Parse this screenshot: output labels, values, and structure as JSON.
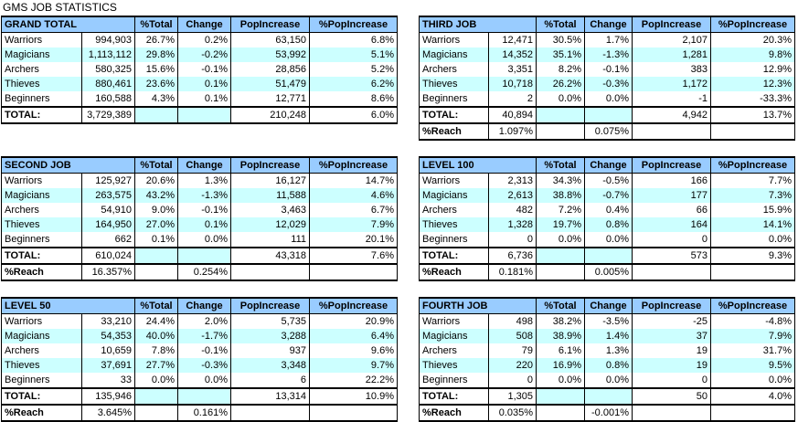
{
  "title": "GMS JOB STATISTICS",
  "headers": [
    "%Total",
    "Change",
    "PopIncrease",
    "%PopIncrease"
  ],
  "tables": {
    "grand_total": {
      "name": "GRAND TOTAL",
      "rows": [
        {
          "label": "Warriors",
          "count": "994,903",
          "pct": "26.7%",
          "change": "0.2%",
          "pop": "63,150",
          "poppct": "6.8%"
        },
        {
          "label": "Magicians",
          "count": "1,113,112",
          "pct": "29.8%",
          "change": "-0.2%",
          "pop": "53,992",
          "poppct": "5.1%"
        },
        {
          "label": "Archers",
          "count": "580,325",
          "pct": "15.6%",
          "change": "-0.1%",
          "pop": "28,856",
          "poppct": "5.2%"
        },
        {
          "label": "Thieves",
          "count": "880,461",
          "pct": "23.6%",
          "change": "0.1%",
          "pop": "51,479",
          "poppct": "6.2%"
        },
        {
          "label": "Beginners",
          "count": "160,588",
          "pct": "4.3%",
          "change": "0.1%",
          "pop": "12,771",
          "poppct": "8.6%"
        }
      ],
      "total": {
        "label": "TOTAL:",
        "count": "3,729,389",
        "pop": "210,248",
        "poppct": "6.0%"
      }
    },
    "third_job": {
      "name": "THIRD JOB",
      "rows": [
        {
          "label": "Warriors",
          "count": "12,471",
          "pct": "30.5%",
          "change": "1.7%",
          "pop": "2,107",
          "poppct": "20.3%"
        },
        {
          "label": "Magicians",
          "count": "14,352",
          "pct": "35.1%",
          "change": "-1.3%",
          "pop": "1,281",
          "poppct": "9.8%"
        },
        {
          "label": "Archers",
          "count": "3,351",
          "pct": "8.2%",
          "change": "-0.1%",
          "pop": "383",
          "poppct": "12.9%"
        },
        {
          "label": "Thieves",
          "count": "10,718",
          "pct": "26.2%",
          "change": "-0.3%",
          "pop": "1,172",
          "poppct": "12.3%"
        },
        {
          "label": "Beginners",
          "count": "2",
          "pct": "0.0%",
          "change": "0.0%",
          "pop": "-1",
          "poppct": "-33.3%"
        }
      ],
      "total": {
        "label": "TOTAL:",
        "count": "40,894",
        "pop": "4,942",
        "poppct": "13.7%"
      },
      "reach": {
        "label": "%Reach",
        "value": "1.097%",
        "change": "0.075%"
      }
    },
    "second_job": {
      "name": "SECOND JOB",
      "rows": [
        {
          "label": "Warriors",
          "count": "125,927",
          "pct": "20.6%",
          "change": "1.3%",
          "pop": "16,127",
          "poppct": "14.7%"
        },
        {
          "label": "Magicians",
          "count": "263,575",
          "pct": "43.2%",
          "change": "-1.3%",
          "pop": "11,588",
          "poppct": "4.6%"
        },
        {
          "label": "Archers",
          "count": "54,910",
          "pct": "9.0%",
          "change": "-0.1%",
          "pop": "3,463",
          "poppct": "6.7%"
        },
        {
          "label": "Thieves",
          "count": "164,950",
          "pct": "27.0%",
          "change": "0.1%",
          "pop": "12,029",
          "poppct": "7.9%"
        },
        {
          "label": "Beginners",
          "count": "662",
          "pct": "0.1%",
          "change": "0.0%",
          "pop": "111",
          "poppct": "20.1%"
        }
      ],
      "total": {
        "label": "TOTAL:",
        "count": "610,024",
        "pop": "43,318",
        "poppct": "7.6%"
      },
      "reach": {
        "label": "%Reach",
        "value": "16.357%",
        "change": "0.254%"
      }
    },
    "level_100": {
      "name": "LEVEL 100",
      "rows": [
        {
          "label": "Warriors",
          "count": "2,313",
          "pct": "34.3%",
          "change": "-0.5%",
          "pop": "166",
          "poppct": "7.7%"
        },
        {
          "label": "Magicians",
          "count": "2,613",
          "pct": "38.8%",
          "change": "-0.7%",
          "pop": "177",
          "poppct": "7.3%"
        },
        {
          "label": "Archers",
          "count": "482",
          "pct": "7.2%",
          "change": "0.4%",
          "pop": "66",
          "poppct": "15.9%"
        },
        {
          "label": "Thieves",
          "count": "1,328",
          "pct": "19.7%",
          "change": "0.8%",
          "pop": "164",
          "poppct": "14.1%"
        },
        {
          "label": "Beginners",
          "count": "0",
          "pct": "0.0%",
          "change": "0.0%",
          "pop": "0",
          "poppct": "0.0%"
        }
      ],
      "total": {
        "label": "TOTAL:",
        "count": "6,736",
        "pop": "573",
        "poppct": "9.3%"
      },
      "reach": {
        "label": "%Reach",
        "value": "0.181%",
        "change": "0.005%"
      }
    },
    "level_50": {
      "name": "LEVEL 50",
      "rows": [
        {
          "label": "Warriors",
          "count": "33,210",
          "pct": "24.4%",
          "change": "2.0%",
          "pop": "5,735",
          "poppct": "20.9%"
        },
        {
          "label": "Magicians",
          "count": "54,353",
          "pct": "40.0%",
          "change": "-1.7%",
          "pop": "3,288",
          "poppct": "6.4%"
        },
        {
          "label": "Archers",
          "count": "10,659",
          "pct": "7.8%",
          "change": "-0.1%",
          "pop": "937",
          "poppct": "9.6%"
        },
        {
          "label": "Thieves",
          "count": "37,691",
          "pct": "27.7%",
          "change": "-0.3%",
          "pop": "3,348",
          "poppct": "9.7%"
        },
        {
          "label": "Beginners",
          "count": "33",
          "pct": "0.0%",
          "change": "0.0%",
          "pop": "6",
          "poppct": "22.2%"
        }
      ],
      "total": {
        "label": "TOTAL:",
        "count": "135,946",
        "pop": "13,314",
        "poppct": "10.9%"
      },
      "reach": {
        "label": "%Reach",
        "value": "3.645%",
        "change": "0.161%"
      }
    },
    "fourth_job": {
      "name": "FOURTH JOB",
      "rows": [
        {
          "label": "Warriors",
          "count": "498",
          "pct": "38.2%",
          "change": "-3.5%",
          "pop": "-25",
          "poppct": "-4.8%"
        },
        {
          "label": "Magicians",
          "count": "508",
          "pct": "38.9%",
          "change": "1.4%",
          "pop": "37",
          "poppct": "7.9%"
        },
        {
          "label": "Archers",
          "count": "79",
          "pct": "6.1%",
          "change": "1.3%",
          "pop": "19",
          "poppct": "31.7%"
        },
        {
          "label": "Thieves",
          "count": "220",
          "pct": "16.9%",
          "change": "0.8%",
          "pop": "19",
          "poppct": "9.5%"
        },
        {
          "label": "Beginners",
          "count": "0",
          "pct": "0.0%",
          "change": "0.0%",
          "pop": "0",
          "poppct": "0.0%"
        }
      ],
      "total": {
        "label": "TOTAL:",
        "count": "1,305",
        "pop": "50",
        "poppct": "4.0%"
      },
      "reach": {
        "label": "%Reach",
        "value": "0.035%",
        "change": "-0.001%"
      }
    }
  },
  "colors": {
    "header": "#99ccff",
    "alt_row": "#ccffff"
  }
}
